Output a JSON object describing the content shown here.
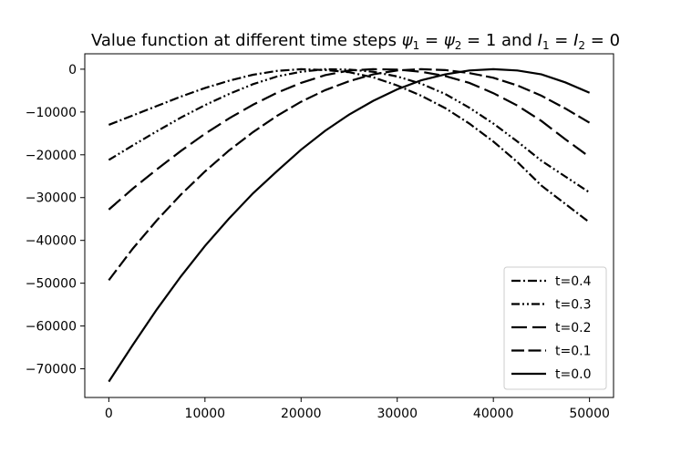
{
  "chart_data": {
    "type": "line",
    "title": "Value function at different time steps ψ₁ = ψ₂ = 1 and I₁ = I₂ = 0",
    "title_parts": {
      "prefix": "Value function at different time steps ",
      "psi": "ψ",
      "sub1": "1",
      "sub2": "2",
      "I": "I",
      "equals_one": " = 1 and ",
      "equals_zero": " = 0",
      "eq": " = "
    },
    "xlabel": "",
    "ylabel": "",
    "xlim": [
      -2500,
      52500
    ],
    "ylim": [
      -76700,
      3600
    ],
    "xticks": [
      0,
      10000,
      20000,
      30000,
      40000,
      50000
    ],
    "xtick_labels": [
      "0",
      "10000",
      "20000",
      "30000",
      "40000",
      "50000"
    ],
    "yticks": [
      0,
      -10000,
      -20000,
      -30000,
      -40000,
      -50000,
      -60000,
      -70000
    ],
    "ytick_labels": [
      "0",
      "−10000",
      "−20000",
      "−30000",
      "−40000",
      "−50000",
      "−60000",
      "−70000"
    ],
    "grid": false,
    "legend_position": "lower-right",
    "x": [
      0,
      2500,
      5000,
      7500,
      10000,
      12500,
      15000,
      17500,
      20000,
      22500,
      25000,
      27500,
      30000,
      32500,
      35000,
      37500,
      40000,
      42500,
      45000,
      47500,
      50000
    ],
    "series": [
      {
        "name": "t=0.4",
        "style": "dashdot",
        "values": [
          -13000,
          -10800,
          -8600,
          -6400,
          -4400,
          -2700,
          -1300,
          -400,
          0,
          -200,
          -700,
          -1900,
          -3800,
          -6200,
          -9100,
          -12700,
          -16900,
          -21700,
          -27200,
          -31500,
          -35800
        ]
      },
      {
        "name": "t=0.3",
        "style": "dashdotdot",
        "values": [
          -21200,
          -17800,
          -14500,
          -11300,
          -8400,
          -5800,
          -3500,
          -1700,
          -600,
          0,
          -100,
          -600,
          -1700,
          -3400,
          -5800,
          -9000,
          -12700,
          -16900,
          -21400,
          -25100,
          -28800
        ]
      },
      {
        "name": "t=0.2",
        "style": "longdash",
        "values": [
          -32800,
          -27900,
          -23400,
          -19100,
          -15100,
          -11500,
          -8300,
          -5500,
          -3200,
          -1400,
          -300,
          0,
          -100,
          -600,
          -1600,
          -3200,
          -5600,
          -8500,
          -12100,
          -16400,
          -20500
        ]
      },
      {
        "name": "t=0.1",
        "style": "dash",
        "values": [
          -49300,
          -41900,
          -35300,
          -29300,
          -23900,
          -19000,
          -14700,
          -10900,
          -7600,
          -4900,
          -2800,
          -1200,
          -300,
          0,
          -200,
          -900,
          -2000,
          -3800,
          -6200,
          -9200,
          -12500
        ]
      },
      {
        "name": "t=0.0",
        "style": "solid",
        "values": [
          -73000,
          -64400,
          -56100,
          -48400,
          -41300,
          -34900,
          -29000,
          -23800,
          -18800,
          -14400,
          -10600,
          -7400,
          -4700,
          -2600,
          -1200,
          -300,
          0,
          -300,
          -1200,
          -3100,
          -5500
        ]
      }
    ],
    "colors": {
      "line": "#000000",
      "axis": "#000000",
      "legend_border": "#cccccc"
    }
  }
}
